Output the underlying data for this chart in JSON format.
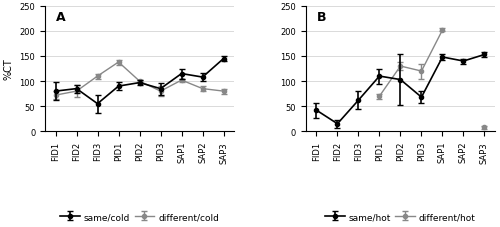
{
  "categories": [
    "FID1",
    "FID2",
    "FID3",
    "PID1",
    "PID2",
    "PID3",
    "SAP1",
    "SAP2",
    "SAP3"
  ],
  "panel_A": {
    "label": "A",
    "series1_label": "same/cold",
    "series2_label": "different/cold",
    "series1_y": [
      80,
      85,
      55,
      90,
      97,
      85,
      115,
      108,
      145
    ],
    "series2_y": [
      72,
      80,
      110,
      138,
      100,
      80,
      102,
      85,
      80
    ],
    "series1_err": [
      18,
      8,
      18,
      8,
      5,
      12,
      10,
      8,
      5
    ],
    "series2_err": [
      8,
      12,
      5,
      5,
      3,
      10,
      3,
      5,
      5
    ]
  },
  "panel_B": {
    "label": "B",
    "series1_label": "same/hot",
    "series2_label": "different/hot",
    "series1_y": [
      42,
      15,
      62,
      110,
      103,
      68,
      148,
      140,
      153
    ],
    "series2_y": [
      null,
      null,
      null,
      70,
      130,
      120,
      202,
      null,
      8
    ],
    "series1_err": [
      15,
      8,
      18,
      15,
      50,
      12,
      5,
      5,
      5
    ],
    "series2_err": [
      null,
      null,
      null,
      5,
      8,
      15,
      3,
      null,
      3
    ]
  },
  "ylim": [
    0,
    250
  ],
  "yticks": [
    0,
    50,
    100,
    150,
    200,
    250
  ],
  "ylabel": "%CT",
  "line_color_s1": "#000000",
  "line_color_s2": "#888888",
  "marker_s1": "o",
  "marker_s2": "o",
  "title_fontsize": 9,
  "tick_fontsize": 6,
  "label_fontsize": 7,
  "legend_fontsize": 6.5
}
